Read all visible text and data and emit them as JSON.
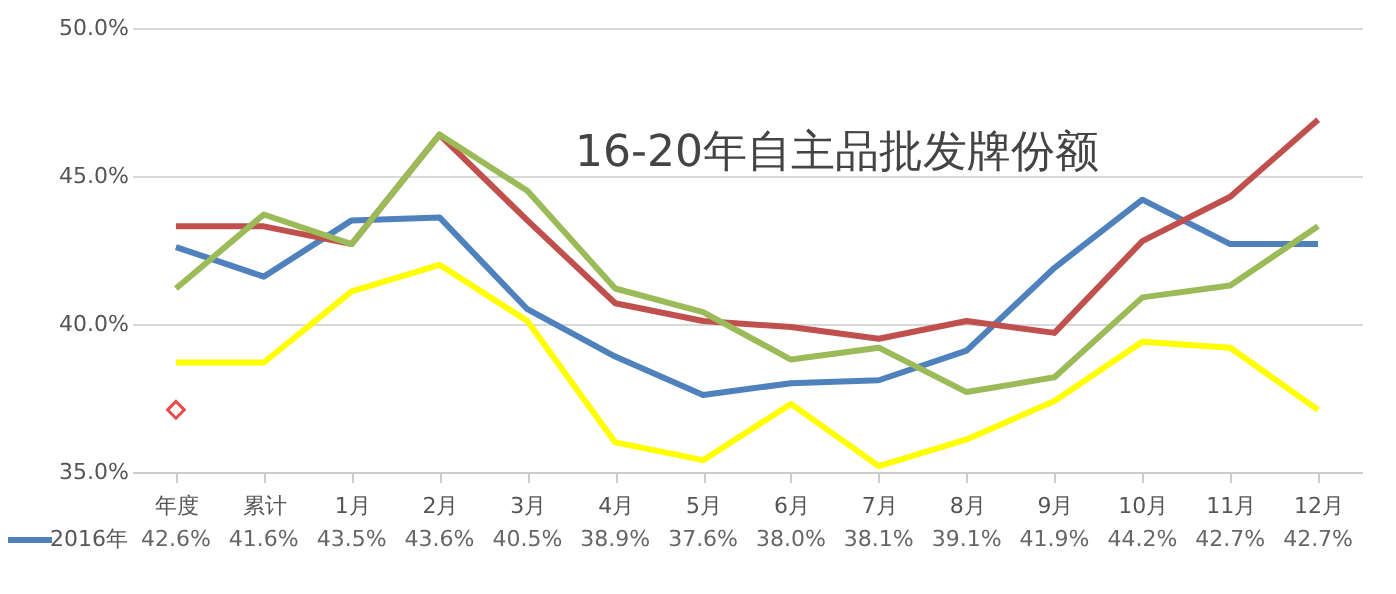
{
  "chart_data": {
    "type": "line",
    "title": "16-20年自主品批发牌份额",
    "categories": [
      "年度",
      "累计",
      "1月",
      "2月",
      "3月",
      "4月",
      "5月",
      "6月",
      "7月",
      "8月",
      "9月",
      "10月",
      "11月",
      "12月"
    ],
    "ylim": [
      35,
      50
    ],
    "yticks": [
      {
        "value": 35,
        "label": "35.0%"
      },
      {
        "value": 40,
        "label": "40.0%"
      },
      {
        "value": 45,
        "label": "45.0%"
      },
      {
        "value": 50,
        "label": "50.0%"
      }
    ],
    "grid": "y",
    "legend": "bottom left",
    "marker": "none",
    "line_style": "solid",
    "series": [
      {
        "name": "2016年",
        "color": "#4f81bd",
        "values": [
          42.6,
          41.6,
          43.5,
          43.6,
          40.5,
          38.9,
          37.6,
          38.0,
          38.1,
          39.1,
          41.9,
          44.2,
          42.7,
          42.7
        ],
        "value_labels": [
          "42.6%",
          "41.6%",
          "43.5%",
          "43.6%",
          "40.5%",
          "38.9%",
          "37.6%",
          "38.0%",
          "38.1%",
          "39.1%",
          "41.9%",
          "44.2%",
          "42.7%",
          "42.7%"
        ]
      },
      {
        "color": "#c0504d",
        "values": [
          43.3,
          43.3,
          42.7,
          46.4,
          43.5,
          40.7,
          40.1,
          39.9,
          39.5,
          40.1,
          39.7,
          42.8,
          44.3,
          46.9
        ]
      },
      {
        "color": "#9bbb59",
        "values": [
          41.2,
          43.7,
          42.7,
          46.4,
          44.5,
          41.2,
          40.4,
          38.8,
          39.2,
          37.7,
          38.2,
          40.9,
          41.3,
          43.3
        ]
      },
      {
        "color": "#ffff00",
        "values": [
          38.7,
          38.7,
          41.1,
          42.0,
          40.1,
          36.0,
          35.4,
          37.3,
          35.2,
          36.1,
          37.4,
          39.4,
          39.2,
          37.1
        ]
      },
      {
        "color": "#e00000",
        "marker": "diamond",
        "values": [
          37.1,
          null,
          null,
          null,
          null,
          null,
          null,
          null,
          null,
          null,
          null,
          null,
          null,
          null
        ]
      }
    ]
  }
}
